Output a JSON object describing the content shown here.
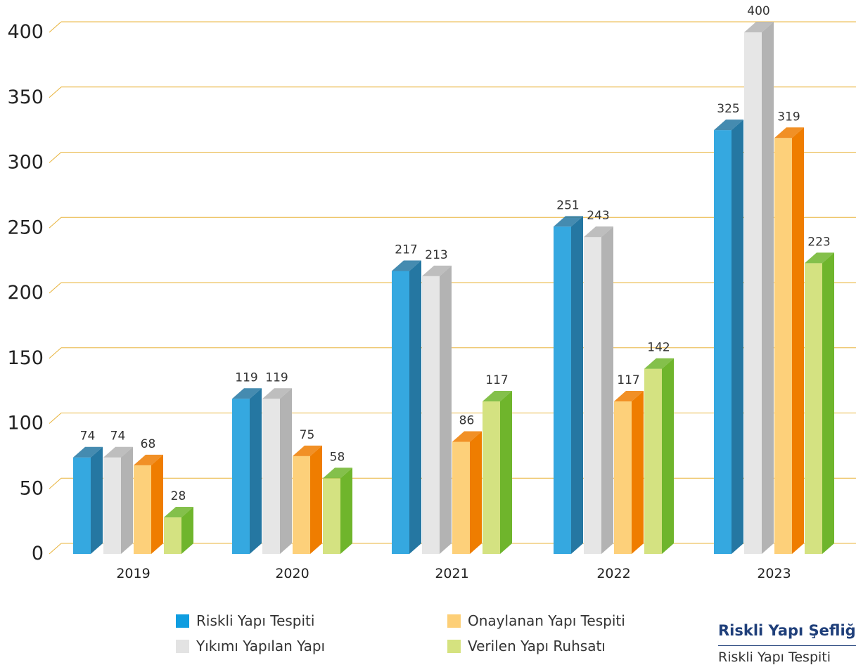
{
  "chart_data": {
    "type": "bar",
    "categories": [
      "2019",
      "2020",
      "2021",
      "2022",
      "2023"
    ],
    "series": [
      {
        "name": "Riskli Yapı Tespiti",
        "values": [
          74,
          119,
          217,
          251,
          325
        ],
        "color": "#35a8e0",
        "dark": "#2577a2"
      },
      {
        "name": "Yıkımı Yapılan Yapı",
        "values": [
          74,
          119,
          213,
          243,
          400
        ],
        "color": "#e6e6e6",
        "dark": "#b3b3b3"
      },
      {
        "name": "Onaylanan Yapı Tespiti",
        "values": [
          68,
          75,
          86,
          117,
          319
        ],
        "color": "#fdd07a",
        "dark": "#ef7d00"
      },
      {
        "name": "Verilen Yapı Ruhsatı",
        "values": [
          28,
          58,
          117,
          142,
          223
        ],
        "color": "#d4e281",
        "dark": "#6fb52c"
      }
    ],
    "yticks": [
      "0",
      "50",
      "100",
      "150",
      "200",
      "250",
      "300",
      "350",
      "400"
    ],
    "ylim": [
      0,
      400
    ],
    "grid": true,
    "gridline_color": "#e8b33a",
    "legend_placement": "bottom",
    "title": "",
    "xlabel": "",
    "ylabel": ""
  },
  "side_panel": {
    "title": "Riskli Yapı Şefliği",
    "subtitle": "Riskli Yapı Tespiti"
  }
}
